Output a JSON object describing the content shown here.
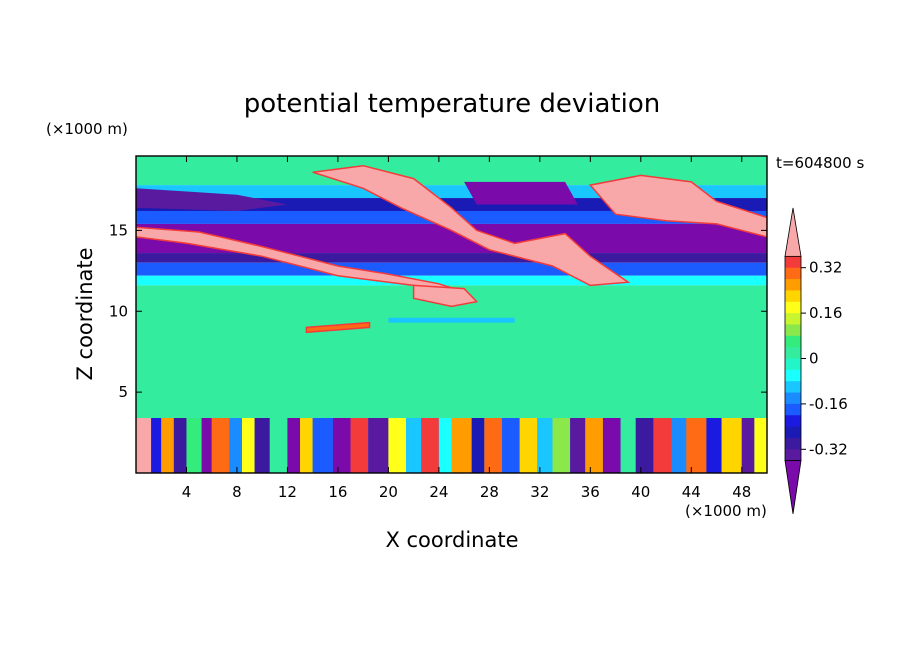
{
  "chart_data": {
    "type": "heatmap",
    "title": "potential temperature deviation",
    "time_label": "t=604800 s",
    "xlabel": "X coordinate",
    "ylabel": "Z coordinate",
    "x_unit": "(×1000 m)",
    "y_unit": "(×1000 m)",
    "xlim": [
      0,
      50
    ],
    "ylim": [
      0,
      19.6
    ],
    "x_ticks": [
      4,
      8,
      12,
      16,
      20,
      24,
      28,
      32,
      36,
      40,
      44,
      48
    ],
    "y_ticks": [
      5,
      10,
      15
    ],
    "colorbar": {
      "levels": [
        0.4,
        0.36,
        0.32,
        0.28,
        0.24,
        0.2,
        0.16,
        0.12,
        0.08,
        0.04,
        0,
        -0.04,
        -0.08,
        -0.12,
        -0.16,
        -0.2,
        -0.24,
        -0.28,
        -0.32,
        -0.36
      ],
      "colors": [
        "#f8a8a8",
        "#f33b3b",
        "#ff6b14",
        "#ff9c00",
        "#ffd500",
        "#ffff1a",
        "#c9f52e",
        "#8ae84a",
        "#33ec7c",
        "#33ec9e",
        "#22f6c8",
        "#1affff",
        "#1ac6ff",
        "#1a8cff",
        "#1a5cff",
        "#1a1ae0",
        "#1a1ab4",
        "#3c1aa0",
        "#5a1aa0",
        "#7a0aaa"
      ],
      "tick_labels": [
        "0.32",
        "0.16",
        "0",
        "-0.16",
        "-0.32"
      ],
      "tick_values": [
        0.32,
        0.16,
        0,
        -0.16,
        -0.32
      ]
    },
    "field_bands": [
      {
        "z": [
          17.8,
          19.6
        ],
        "value": 0.04
      },
      {
        "z": [
          17.0,
          17.8
        ],
        "value": -0.08
      },
      {
        "z": [
          16.2,
          17.0
        ],
        "value": -0.24
      },
      {
        "z": [
          15.4,
          16.2
        ],
        "value": -0.16
      },
      {
        "z": [
          13.6,
          15.4
        ],
        "value": -0.36
      },
      {
        "z": [
          13.0,
          13.6
        ],
        "value": -0.28
      },
      {
        "z": [
          12.2,
          13.0
        ],
        "value": -0.16
      },
      {
        "z": [
          11.6,
          12.2
        ],
        "value": -0.04
      },
      {
        "z": [
          3.4,
          11.6
        ],
        "value": 0.04
      },
      {
        "z": [
          0,
          3.4
        ],
        "value": -0.12
      }
    ],
    "features": [
      {
        "name": "warm-filament-upper-left",
        "value": 0.4,
        "points": [
          [
            0,
            15.2
          ],
          [
            5,
            14.9
          ],
          [
            10,
            14.0
          ],
          [
            16,
            12.8
          ],
          [
            20,
            12.3
          ],
          [
            24,
            11.7
          ],
          [
            26,
            11.2
          ],
          [
            22,
            11.6
          ],
          [
            16,
            12.2
          ],
          [
            10,
            13.4
          ],
          [
            4,
            14.2
          ],
          [
            0,
            14.6
          ]
        ]
      },
      {
        "name": "warm-patch-x25",
        "value": 0.4,
        "points": [
          [
            22,
            11.6
          ],
          [
            26,
            11.4
          ],
          [
            27,
            10.6
          ],
          [
            25,
            10.3
          ],
          [
            22,
            10.8
          ]
        ]
      },
      {
        "name": "warm-blob-x16",
        "value": 0.4,
        "points": [
          [
            14,
            18.6
          ],
          [
            18,
            19.0
          ],
          [
            22,
            18.2
          ],
          [
            25,
            16.4
          ],
          [
            27,
            15.0
          ],
          [
            30,
            14.2
          ],
          [
            34,
            14.8
          ],
          [
            36,
            13.4
          ],
          [
            39,
            11.8
          ],
          [
            36,
            11.6
          ],
          [
            33,
            12.8
          ],
          [
            28,
            13.8
          ],
          [
            25,
            15.0
          ],
          [
            21,
            16.4
          ],
          [
            18,
            17.6
          ]
        ]
      },
      {
        "name": "warm-blob-x39",
        "value": 0.4,
        "points": [
          [
            36,
            17.8
          ],
          [
            40,
            18.4
          ],
          [
            44,
            18.0
          ],
          [
            46,
            16.8
          ],
          [
            50,
            15.8
          ],
          [
            50,
            14.6
          ],
          [
            46,
            15.4
          ],
          [
            42,
            15.6
          ],
          [
            38,
            16.0
          ]
        ]
      },
      {
        "name": "cold-pool-x27",
        "value": -0.36,
        "points": [
          [
            26,
            18.0
          ],
          [
            34,
            18.0
          ],
          [
            35,
            16.6
          ],
          [
            27,
            16.6
          ]
        ]
      },
      {
        "name": "cold-pool-x4",
        "value": -0.32,
        "points": [
          [
            0,
            17.6
          ],
          [
            8,
            17.2
          ],
          [
            12,
            16.6
          ],
          [
            8,
            16.2
          ],
          [
            0,
            16.4
          ]
        ]
      },
      {
        "name": "cold-pool-x20",
        "value": -0.36,
        "points": [
          [
            16,
            15.2
          ],
          [
            24,
            15.0
          ],
          [
            26,
            13.8
          ],
          [
            20,
            13.6
          ],
          [
            16,
            14.2
          ]
        ]
      },
      {
        "name": "warm-streak-x15",
        "value": 0.32,
        "points": [
          [
            13.5,
            9.0
          ],
          [
            18.5,
            9.3
          ],
          [
            18.5,
            9.0
          ],
          [
            13.5,
            8.7
          ]
        ]
      },
      {
        "name": "cool-streak-x25",
        "value": -0.08,
        "points": [
          [
            20,
            9.6
          ],
          [
            30,
            9.6
          ],
          [
            30,
            9.3
          ],
          [
            20,
            9.3
          ]
        ]
      }
    ],
    "boundary_layer": {
      "z_top": 3.4,
      "columns": [
        {
          "x": [
            0,
            1.2
          ],
          "value": 0.4
        },
        {
          "x": [
            1.2,
            2.0
          ],
          "value": -0.2
        },
        {
          "x": [
            2.0,
            3.0
          ],
          "value": 0.28
        },
        {
          "x": [
            3.0,
            4.0
          ],
          "value": -0.28
        },
        {
          "x": [
            4.0,
            5.2
          ],
          "value": 0.08
        },
        {
          "x": [
            5.2,
            6.0
          ],
          "value": -0.36
        },
        {
          "x": [
            6.0,
            7.4
          ],
          "value": 0.32
        },
        {
          "x": [
            7.4,
            8.4
          ],
          "value": -0.12
        },
        {
          "x": [
            8.4,
            9.4
          ],
          "value": 0.2
        },
        {
          "x": [
            9.4,
            10.6
          ],
          "value": -0.28
        },
        {
          "x": [
            10.6,
            12.0
          ],
          "value": 0.04
        },
        {
          "x": [
            12.0,
            13.0
          ],
          "value": -0.36
        },
        {
          "x": [
            13.0,
            14.0
          ],
          "value": 0.24
        },
        {
          "x": [
            14.0,
            15.6
          ],
          "value": -0.16
        },
        {
          "x": [
            15.6,
            17.0
          ],
          "value": -0.36
        },
        {
          "x": [
            17.0,
            18.4
          ],
          "value": 0.36
        },
        {
          "x": [
            18.4,
            20.0
          ],
          "value": -0.32
        },
        {
          "x": [
            20.0,
            21.4
          ],
          "value": 0.2
        },
        {
          "x": [
            21.4,
            22.6
          ],
          "value": -0.08
        },
        {
          "x": [
            22.6,
            24.0
          ],
          "value": 0.36
        },
        {
          "x": [
            24.0,
            25.0
          ],
          "value": -0.04
        },
        {
          "x": [
            25.0,
            26.6
          ],
          "value": 0.28
        },
        {
          "x": [
            26.6,
            27.6
          ],
          "value": -0.24
        },
        {
          "x": [
            27.6,
            29.0
          ],
          "value": 0.32
        },
        {
          "x": [
            29.0,
            30.4
          ],
          "value": -0.16
        },
        {
          "x": [
            30.4,
            31.8
          ],
          "value": 0.24
        },
        {
          "x": [
            31.8,
            33.0
          ],
          "value": -0.08
        },
        {
          "x": [
            33.0,
            34.4
          ],
          "value": 0.12
        },
        {
          "x": [
            34.4,
            35.6
          ],
          "value": -0.32
        },
        {
          "x": [
            35.6,
            37.0
          ],
          "value": 0.28
        },
        {
          "x": [
            37.0,
            38.4
          ],
          "value": -0.36
        },
        {
          "x": [
            38.4,
            39.6
          ],
          "value": 0.04
        },
        {
          "x": [
            39.6,
            41.0
          ],
          "value": -0.28
        },
        {
          "x": [
            41.0,
            42.4
          ],
          "value": 0.36
        },
        {
          "x": [
            42.4,
            43.6
          ],
          "value": -0.12
        },
        {
          "x": [
            43.6,
            45.2
          ],
          "value": 0.32
        },
        {
          "x": [
            45.2,
            46.4
          ],
          "value": -0.2
        },
        {
          "x": [
            46.4,
            48.0
          ],
          "value": 0.24
        },
        {
          "x": [
            48.0,
            49.0
          ],
          "value": -0.32
        },
        {
          "x": [
            49.0,
            50.0
          ],
          "value": 0.2
        }
      ]
    }
  }
}
